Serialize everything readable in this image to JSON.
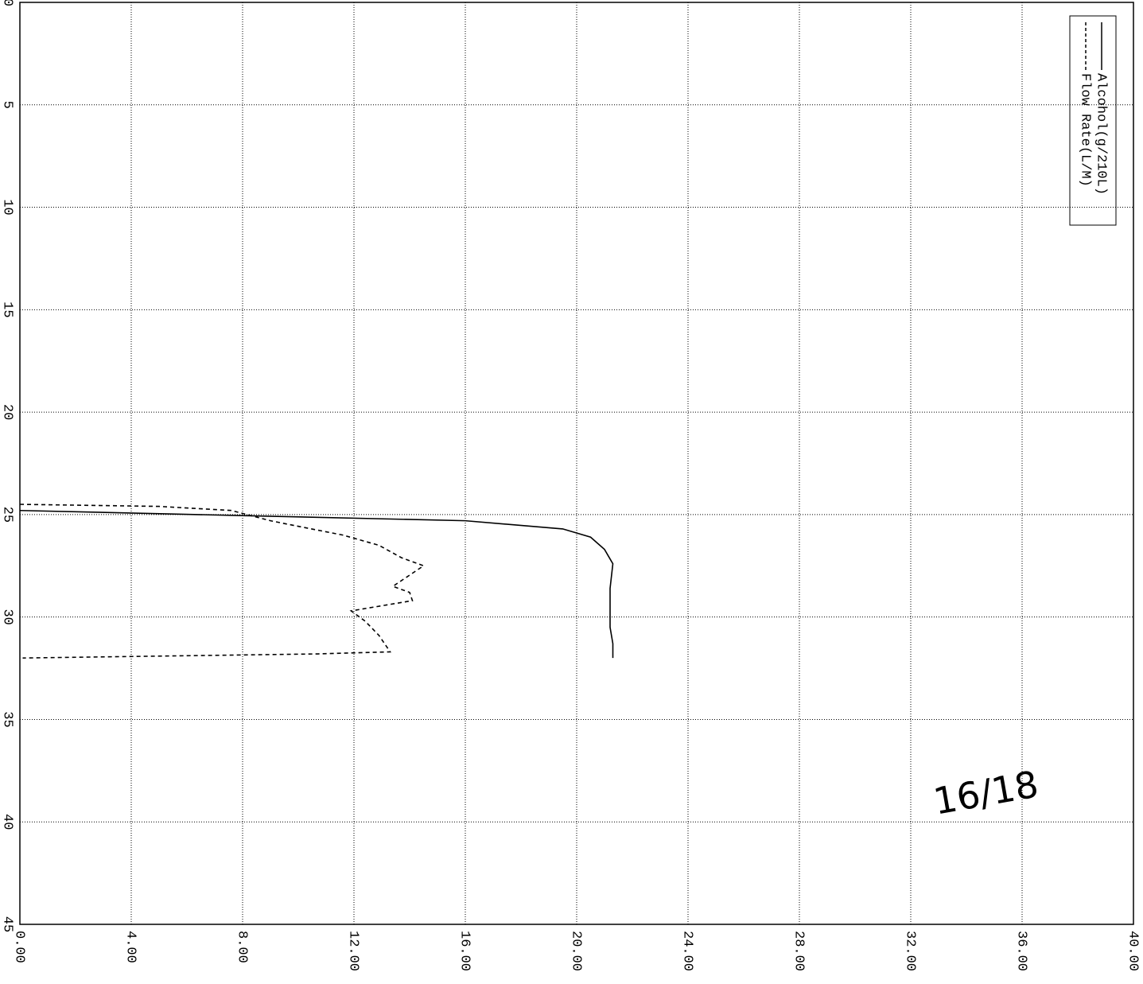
{
  "chart_data": {
    "type": "line",
    "xlim": [
      0,
      45
    ],
    "xticks": [
      0,
      5,
      10,
      15,
      20,
      25,
      30,
      35,
      40,
      45
    ],
    "ylim": [
      0,
      40
    ],
    "yticks": [
      {
        "value": 0,
        "label": "0.00"
      },
      {
        "value": 4,
        "label": "4.00"
      },
      {
        "value": 8,
        "label": "8.00"
      },
      {
        "value": 12,
        "label": "12.00"
      },
      {
        "value": 16,
        "label": "16.00"
      },
      {
        "value": 20,
        "label": "20.00"
      },
      {
        "value": 24,
        "label": "24.00"
      },
      {
        "value": 28,
        "label": "28.00"
      },
      {
        "value": 32,
        "label": "32.00"
      },
      {
        "value": 36,
        "label": "36.00"
      },
      {
        "value": 40,
        "label": "40.00"
      }
    ],
    "grid": true,
    "legend": "top-right",
    "annotations": [
      "16/18"
    ],
    "series": [
      {
        "name": "Alcohol(g/210L)",
        "color": "#000000",
        "style": "solid",
        "x": [
          24.8,
          25.05,
          25.3,
          25.7,
          26.1,
          26.7,
          27.4,
          28.6,
          30.5,
          31.3,
          32.0
        ],
        "values": [
          0,
          8,
          16,
          19.5,
          20.5,
          21.0,
          21.3,
          21.2,
          21.2,
          21.3,
          21.3
        ]
      },
      {
        "name": "Flow Rate(L/M)",
        "color": "#000000",
        "style": "dashed",
        "x": [
          24.5,
          24.6,
          24.8,
          25.3,
          25.6,
          26.0,
          26.5,
          27.1,
          27.5,
          28.5,
          28.8,
          29.2,
          29.7,
          30.2,
          30.9,
          31.7,
          31.8,
          32.0
        ],
        "values": [
          0,
          5,
          7.6,
          9,
          10.1,
          11.6,
          12.9,
          13.7,
          14.5,
          13.4,
          14.0,
          14.1,
          11.9,
          12.4,
          12.9,
          13.3,
          10.7,
          0.1
        ]
      }
    ]
  }
}
